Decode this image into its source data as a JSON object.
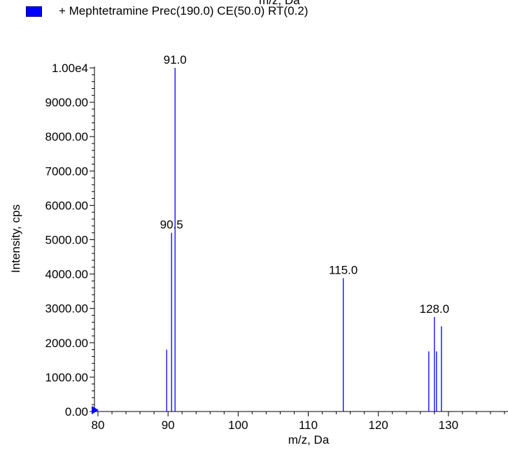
{
  "chart_data": {
    "type": "bar",
    "title": "",
    "top_clipped_text": "m/z, Da",
    "legend": {
      "entries": [
        "+ Mephtetramine Prec(190.0) CE(50.0) RT(0.2)"
      ],
      "color": "#0000ff"
    },
    "xlabel": "m/z, Da",
    "ylabel": "Intensity, cps",
    "xlim": [
      79.5,
      138.5
    ],
    "ylim": [
      0,
      10000
    ],
    "x_ticks": [
      80,
      90,
      100,
      110,
      120,
      130
    ],
    "y_ticks": [
      0,
      1000,
      2000,
      3000,
      4000,
      5000,
      6000,
      7000,
      8000,
      9000,
      10000
    ],
    "y_tick_labels": [
      "0.00",
      "1000.00",
      "2000.00",
      "3000.00",
      "4000.00",
      "5000.00",
      "6000.00",
      "7000.00",
      "8000.00",
      "9000.00",
      "1.00e4"
    ],
    "series": [
      {
        "name": "+ Mephtetramine Prec(190.0) CE(50.0) RT(0.2)",
        "color": "#0000ff",
        "x": [
          89.8,
          90.5,
          91.0,
          115.0,
          127.2,
          128.0,
          128.3,
          129.0
        ],
        "values": [
          1800,
          5200,
          10000,
          3880,
          1750,
          2750,
          1750,
          2480
        ]
      }
    ],
    "peak_labels": [
      {
        "x": 91.0,
        "y": 10000,
        "text": "91.0"
      },
      {
        "x": 90.5,
        "y": 5200,
        "text": "90.5"
      },
      {
        "x": 115.0,
        "y": 3880,
        "text": "115.0"
      },
      {
        "x": 128.0,
        "y": 2750,
        "text": "128.0"
      }
    ],
    "grid": false,
    "legend_position": "top-left"
  }
}
